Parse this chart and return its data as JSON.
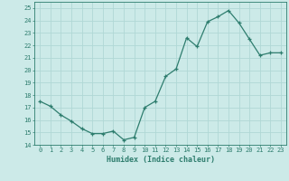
{
  "x": [
    0,
    1,
    2,
    3,
    4,
    5,
    6,
    7,
    8,
    9,
    10,
    11,
    12,
    13,
    14,
    15,
    16,
    17,
    18,
    19,
    20,
    21,
    22,
    23
  ],
  "y": [
    17.5,
    17.1,
    16.4,
    15.9,
    15.3,
    14.9,
    14.9,
    15.1,
    14.4,
    14.6,
    17.0,
    17.5,
    19.5,
    20.1,
    22.6,
    21.9,
    23.9,
    24.3,
    24.8,
    23.8,
    22.5,
    21.2,
    21.4,
    21.4
  ],
  "xlabel": "Humidex (Indice chaleur)",
  "ylabel": "",
  "xlim": [
    -0.5,
    23.5
  ],
  "ylim": [
    14,
    25.5
  ],
  "yticks": [
    14,
    15,
    16,
    17,
    18,
    19,
    20,
    21,
    22,
    23,
    24,
    25
  ],
  "xticks": [
    0,
    1,
    2,
    3,
    4,
    5,
    6,
    7,
    8,
    9,
    10,
    11,
    12,
    13,
    14,
    15,
    16,
    17,
    18,
    19,
    20,
    21,
    22,
    23
  ],
  "line_color": "#2e7d6e",
  "marker": "+",
  "bg_color": "#cceae8",
  "grid_color": "#b0d8d5",
  "tick_color": "#2e7d6e",
  "label_color": "#2e7d6e",
  "font_family": "monospace",
  "xlabel_fontsize": 6.0,
  "tick_fontsize": 5.0
}
